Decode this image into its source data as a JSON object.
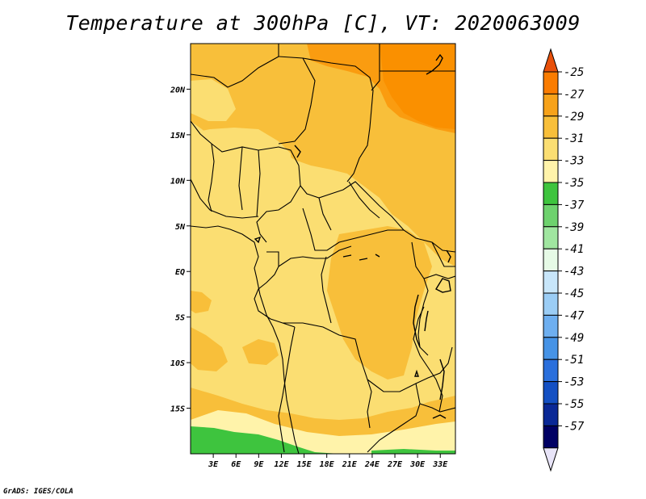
{
  "title": "Temperature at 300hPa [C], VT: 2020063009",
  "credit": "GrADS: IGES/COLA",
  "map": {
    "lon_range": [
      0,
      35
    ],
    "lat_range": [
      -20,
      25
    ],
    "lon_ticks": [
      "3E",
      "6E",
      "9E",
      "12E",
      "15E",
      "18E",
      "21E",
      "24E",
      "27E",
      "30E",
      "33E"
    ],
    "lat_ticks": [
      "20N",
      "15N",
      "10N",
      "5N",
      "EQ",
      "5S",
      "10S",
      "15S"
    ]
  },
  "colorbar": {
    "labels": [
      "-25",
      "-27",
      "-29",
      "-31",
      "-33",
      "-35",
      "-37",
      "-39",
      "-41",
      "-43",
      "-45",
      "-47",
      "-49",
      "-51",
      "-53",
      "-55",
      "-57"
    ],
    "colors": [
      "#e8500a",
      "#fa7c00",
      "#f7a21a",
      "#f8bf3a",
      "#fbde72",
      "#fff3aa",
      "#3ec43e",
      "#6ed26e",
      "#a0e6a0",
      "#e6fae6",
      "#c8e6fa",
      "#9bcdf5",
      "#6eaff0",
      "#4693e6",
      "#2a6fdc",
      "#1450c3",
      "#0a2896",
      "#000064",
      "#e8e4f8"
    ]
  }
}
